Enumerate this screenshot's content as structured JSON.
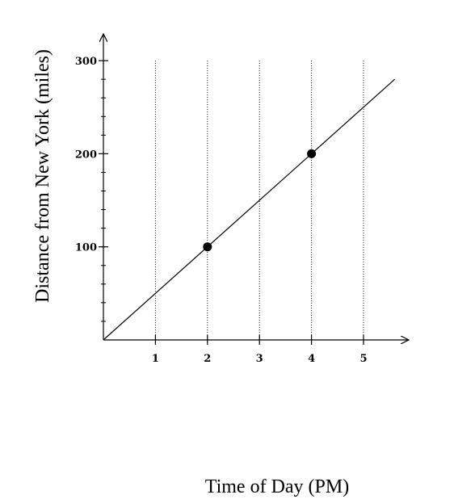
{
  "chart_data": {
    "type": "line",
    "xlabel": "Time of Day (PM)",
    "ylabel": "Distance from New York (miles)",
    "x_ticks": [
      1,
      2,
      3,
      4,
      5
    ],
    "y_ticks": [
      100,
      200,
      300
    ],
    "xlim": [
      0,
      5.6
    ],
    "ylim": [
      0,
      300
    ],
    "y_minor_step": 20,
    "grid_x": true,
    "grid_y": false,
    "line": {
      "x": [
        0,
        5.6
      ],
      "y": [
        0,
        280
      ]
    },
    "points": [
      {
        "x": 2,
        "y": 100
      },
      {
        "x": 4,
        "y": 200
      }
    ],
    "colors": {
      "line": "#000000",
      "grid": "#000000",
      "points": "#000000"
    }
  }
}
